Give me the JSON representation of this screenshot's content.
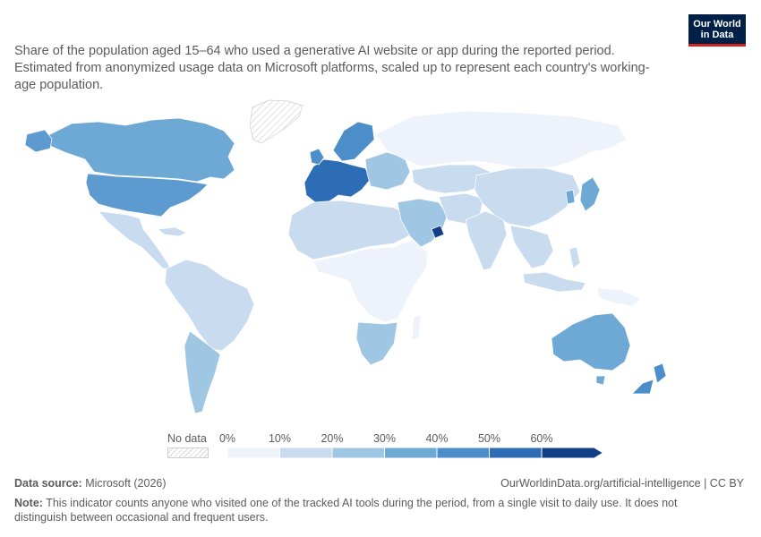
{
  "header": {
    "subtitle": "Share of the population aged 15–64 who used a generative AI website or app during the reported period. Estimated from anonymized usage data on Microsoft platforms, scaled up to represent each country's working-age population.",
    "logo_line1": "Our World",
    "logo_line2": "in Data"
  },
  "legend": {
    "no_data_label": "No data",
    "ticks": [
      "0%",
      "10%",
      "20%",
      "30%",
      "40%",
      "50%",
      "60%"
    ],
    "bin_colors": [
      "#eef2fb",
      "#c9dbef",
      "#9fc7e3",
      "#6ea9d6",
      "#4b8ec9",
      "#2d6db5",
      "#133f89"
    ],
    "no_data_color": "#e8e8e8"
  },
  "map_regions": {
    "north_america": {
      "color": "#6ea9d6"
    },
    "canada": {
      "color": "#6ea9d6"
    },
    "usa": {
      "color": "#5d9acf"
    },
    "greenland": {
      "color": "#e8e8e8"
    },
    "mexico_central": {
      "color": "#c9dbef"
    },
    "south_america": {
      "color": "#c9dbef"
    },
    "argentina_chile": {
      "color": "#9fc7e3"
    },
    "europe_west": {
      "color": "#2d6db5"
    },
    "europe_north": {
      "color": "#4b8ec9"
    },
    "europe_east": {
      "color": "#9fc7e3"
    },
    "russia": {
      "color": "#eef2fb"
    },
    "north_africa": {
      "color": "#c9dbef"
    },
    "sub_saharan_africa": {
      "color": "#eef2fb"
    },
    "southern_africa": {
      "color": "#9fc7e3"
    },
    "middle_east": {
      "color": "#9fc7e3"
    },
    "uae": {
      "color": "#133f89"
    },
    "central_asia": {
      "color": "#c9dbef"
    },
    "china": {
      "color": "#c9dbef"
    },
    "india": {
      "color": "#c9dbef"
    },
    "southeast_asia": {
      "color": "#c9dbef"
    },
    "japan_korea": {
      "color": "#6ea9d6"
    },
    "australia": {
      "color": "#6ea9d6"
    },
    "new_zealand": {
      "color": "#4b8ec9"
    },
    "png_indonesia": {
      "color": "#eef2fb"
    }
  },
  "footer": {
    "source_label": "Data source:",
    "source_value": "Microsoft (2026)",
    "url": "OurWorldinData.org/artificial-intelligence | CC BY",
    "note_label": "Note:",
    "note_text": "This indicator counts anyone who visited one of the tracked AI tools during the period, from a single visit to daily use. It does not distinguish between occasional and frequent users."
  }
}
